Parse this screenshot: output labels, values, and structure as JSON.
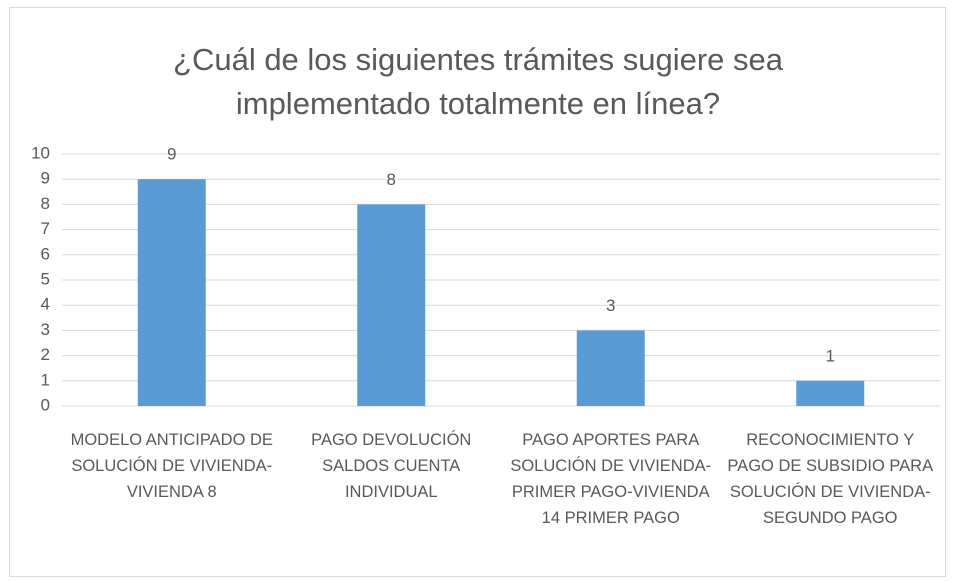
{
  "chart_data": {
    "type": "bar",
    "title": "¿Cuál de los siguientes trámites sugiere sea implementado totalmente en línea?",
    "categories": [
      "MODELO ANTICIPADO DE SOLUCIÓN DE VIVIENDA-VIVIENDA 8",
      "PAGO DEVOLUCIÓN SALDOS CUENTA INDIVIDUAL",
      "PAGO APORTES PARA SOLUCIÓN DE VIVIENDA-PRIMER PAGO-VIVIENDA 14 PRIMER PAGO",
      "RECONOCIMIENTO Y PAGO DE SUBSIDIO PARA SOLUCIÓN DE VIVIENDA-SEGUNDO PAGO"
    ],
    "values": [
      9,
      8,
      3,
      1
    ],
    "color": "#5b9bd5",
    "ylim": [
      0,
      10
    ],
    "yticks": [
      0,
      1,
      2,
      3,
      4,
      5,
      6,
      7,
      8,
      9,
      10
    ],
    "grid": true
  }
}
